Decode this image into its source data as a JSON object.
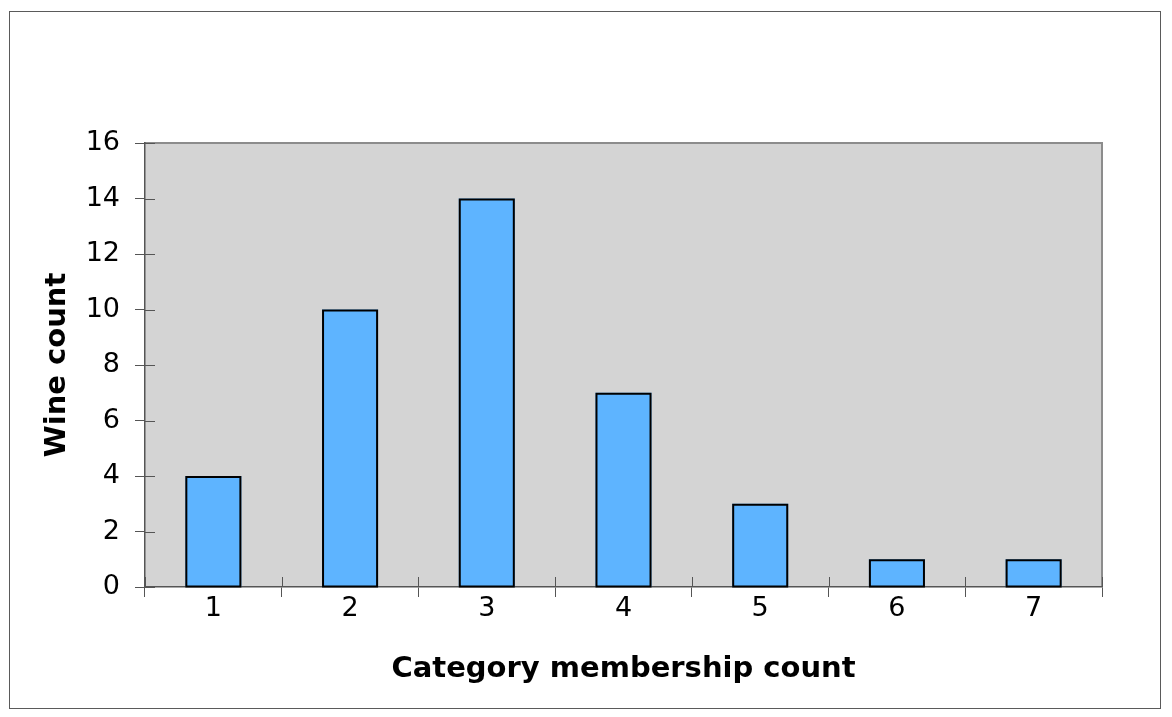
{
  "chart_data": {
    "type": "bar",
    "xlabel": "Category membership count",
    "ylabel": "Wine count",
    "categories": [
      "1",
      "2",
      "3",
      "4",
      "5",
      "6",
      "7"
    ],
    "values": [
      4,
      10,
      14,
      7,
      3,
      1,
      1
    ],
    "color": "#5eb4ff",
    "ylim": [
      0,
      16
    ],
    "yticks": [
      0,
      2,
      4,
      6,
      8,
      10,
      12,
      14,
      16
    ],
    "grid": false,
    "legend": false
  }
}
